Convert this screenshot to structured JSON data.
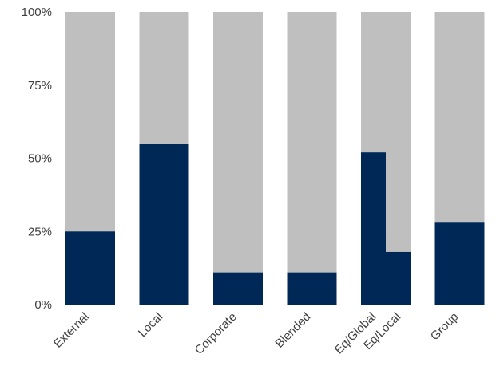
{
  "chart_data": {
    "type": "bar",
    "stacked": true,
    "normalized_percent": true,
    "ylim": [
      0,
      100
    ],
    "y_ticks": [
      "0%",
      "25%",
      "50%",
      "75%",
      "100%"
    ],
    "y_tick_values": [
      0,
      25,
      50,
      75,
      100
    ],
    "grid": false,
    "legend": "none",
    "title": "",
    "xlabel": "",
    "ylabel": "",
    "colors": {
      "share": "#002856",
      "remainder": "#bfbfbf"
    },
    "categories": [
      "External",
      "Local",
      "Corporate",
      "Blended",
      "Eq/Global",
      "Eq/Local",
      "Group"
    ],
    "values": [
      25,
      55,
      11,
      11,
      52,
      18,
      28
    ],
    "bar_groups": [
      {
        "categories": [
          0
        ]
      },
      {
        "categories": [
          1
        ]
      },
      {
        "categories": [
          2
        ]
      },
      {
        "categories": [
          3
        ]
      },
      {
        "categories": [
          4,
          5
        ]
      },
      {
        "categories": [
          6
        ]
      }
    ]
  }
}
